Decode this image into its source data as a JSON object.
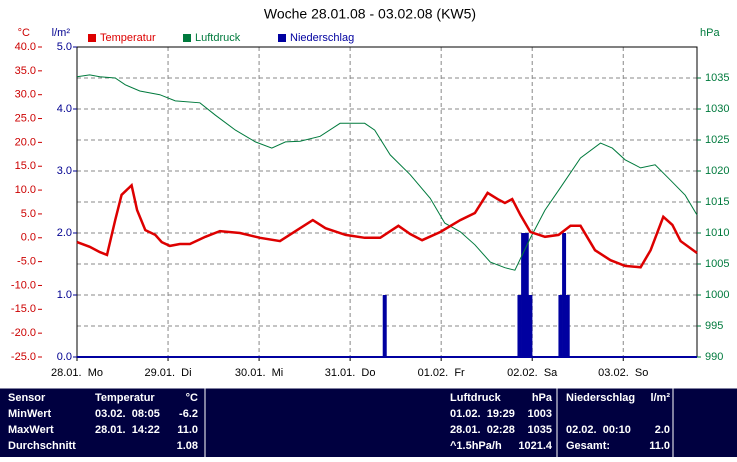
{
  "chart_data": {
    "type": "combo",
    "title": "Woche 28.01.08 - 03.02.08 (KW5)",
    "ylabel": "°C",
    "y2label": "hPa",
    "y3label": "l/m²",
    "xlim": [
      0,
      6.81
    ],
    "xticks": [
      {
        "value": 0,
        "label": "28.01.  Mo"
      },
      {
        "value": 1,
        "label": "29.01.  Di"
      },
      {
        "value": 2,
        "label": "30.01.  Mi"
      },
      {
        "value": 3,
        "label": "31.01.  Do"
      },
      {
        "value": 4,
        "label": "01.02.  Fr"
      },
      {
        "value": 5,
        "label": "02.02.  Sa"
      },
      {
        "value": 6,
        "label": "03.02.  So"
      }
    ],
    "ylim": [
      -25,
      40
    ],
    "yticks": [
      {
        "value": -25,
        "label": "-25.0"
      },
      {
        "value": -20,
        "label": "-20.0"
      },
      {
        "value": -15,
        "label": "-15.0"
      },
      {
        "value": -10,
        "label": "-10.0"
      },
      {
        "value": -5,
        "label": "-5.0"
      },
      {
        "value": 0,
        "label": "0.0"
      },
      {
        "value": 5,
        "label": "5.0"
      },
      {
        "value": 10,
        "label": "10.0"
      },
      {
        "value": 15,
        "label": "15.0"
      },
      {
        "value": 20,
        "label": "20.0"
      },
      {
        "value": 25,
        "label": "25.0"
      },
      {
        "value": 30,
        "label": "30.0"
      },
      {
        "value": 35,
        "label": "35.0"
      },
      {
        "value": 40,
        "label": "40.0"
      }
    ],
    "y2lim": [
      990,
      1040
    ],
    "y2ticks": [
      990,
      995,
      1000,
      1005,
      1010,
      1015,
      1020,
      1025,
      1030,
      1035
    ],
    "y3lim": [
      0,
      5
    ],
    "y3ticks": [
      {
        "value": 0,
        "label": "0.0"
      },
      {
        "value": 1,
        "label": "1.0"
      },
      {
        "value": 2,
        "label": "2.0"
      },
      {
        "value": 3,
        "label": "3.0"
      },
      {
        "value": 4,
        "label": "4.0"
      },
      {
        "value": 5,
        "label": "5.0"
      }
    ],
    "grid": true,
    "legend": "top",
    "series": [
      {
        "name": "Temperatur",
        "type": "line",
        "color": "#dd0000",
        "x": [
          0,
          0.14,
          0.25,
          0.33,
          0.42,
          0.49,
          0.6,
          0.66,
          0.75,
          0.86,
          0.93,
          1.02,
          1.13,
          1.24,
          1.41,
          1.57,
          1.79,
          2.01,
          2.23,
          2.45,
          2.59,
          2.73,
          2.95,
          3.16,
          3.33,
          3.53,
          3.66,
          3.79,
          3.99,
          4.21,
          4.37,
          4.51,
          4.62,
          4.7,
          4.78,
          4.87,
          4.98,
          5.14,
          5.29,
          5.42,
          5.53,
          5.69,
          5.86,
          6.02,
          6.19,
          6.3,
          6.44,
          6.54,
          6.63,
          6.81
        ],
        "values": [
          -0.9,
          -1.9,
          -3.0,
          -3.6,
          3.7,
          9.0,
          11.0,
          5.8,
          1.6,
          0.6,
          -0.9,
          -1.7,
          -1.3,
          -1.3,
          0.2,
          1.4,
          1.0,
          0.0,
          -0.7,
          2.0,
          3.7,
          2.0,
          0.6,
          0.0,
          0.0,
          2.5,
          0.8,
          -0.5,
          1.2,
          3.7,
          5.2,
          9.4,
          8.1,
          7.3,
          8.1,
          4.8,
          1.2,
          0.2,
          0.6,
          2.5,
          2.5,
          -2.6,
          -4.7,
          -5.9,
          -6.2,
          -2.6,
          4.4,
          2.7,
          -0.7,
          -3.2
        ]
      },
      {
        "name": "Luftdruck",
        "type": "line",
        "axis": "y2",
        "color": "#007a3d",
        "x": [
          0,
          0.14,
          0.25,
          0.42,
          0.53,
          0.69,
          0.91,
          1.08,
          1.35,
          1.52,
          1.74,
          1.96,
          2.14,
          2.29,
          2.45,
          2.67,
          2.89,
          3.16,
          3.27,
          3.44,
          3.66,
          3.88,
          4.04,
          4.21,
          4.37,
          4.54,
          4.7,
          4.81,
          4.98,
          5.14,
          5.31,
          5.53,
          5.75,
          5.88,
          6.02,
          6.19,
          6.35,
          6.52,
          6.68,
          6.81
        ],
        "values": [
          1035.2,
          1035.5,
          1035.2,
          1035.0,
          1033.9,
          1032.9,
          1032.3,
          1031.3,
          1031.0,
          1029.0,
          1026.6,
          1024.7,
          1023.7,
          1024.7,
          1024.8,
          1025.6,
          1027.7,
          1027.7,
          1026.6,
          1022.6,
          1019.4,
          1015.6,
          1011.6,
          1010.2,
          1008.1,
          1005.3,
          1004.4,
          1004.0,
          1009.2,
          1013.7,
          1017.3,
          1022.1,
          1024.5,
          1023.7,
          1021.8,
          1020.5,
          1021.0,
          1018.5,
          1016.1,
          1012.9
        ]
      },
      {
        "name": "Niederschlag",
        "type": "bar",
        "axis": "y3",
        "color": "#0000a0",
        "x": [
          3.38,
          4.86,
          4.9,
          4.94,
          4.98,
          5.31,
          5.35,
          5.39
        ],
        "values": [
          1.0,
          1.0,
          2.0,
          2.0,
          1.0,
          1.0,
          2.0,
          1.0
        ]
      }
    ]
  },
  "table": {
    "header": {
      "sensor": "Sensor",
      "temp": "Temperatur",
      "temp_unit": "°C",
      "pressure": "Luftdruck",
      "pressure_unit": "hPa",
      "rain": "Niederschlag",
      "rain_unit": "l/m²"
    },
    "rows": [
      {
        "sensor": "MinWert",
        "temp_time": "03.02.  08:05",
        "temp": "-6.2",
        "pressure_time": "01.02.  19:29",
        "pressure": "1003"
      },
      {
        "sensor": "MaxWert",
        "temp_time": "28.01.  14:22",
        "temp": "11.0",
        "pressure_time": "28.01.  02:28",
        "pressure": "1035",
        "rain_time": "02.02.  00:10",
        "rain": "2.0"
      },
      {
        "sensor": "Durchschnitt",
        "temp": "1.08",
        "pressure_time": "^1.5hPa/h",
        "pressure": "1021.4",
        "rain_time": "Gesamt:",
        "rain": "11.0"
      }
    ]
  }
}
